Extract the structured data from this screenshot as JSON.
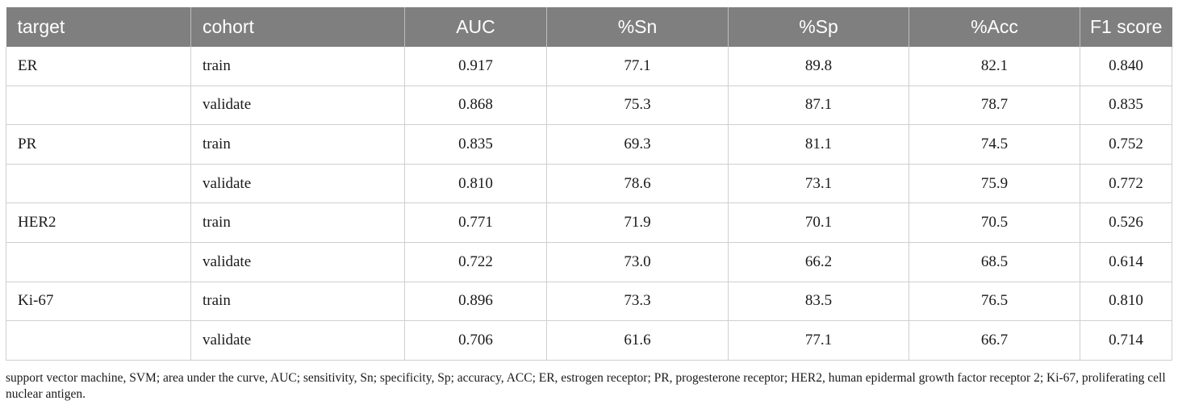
{
  "table": {
    "headers": [
      "target",
      "cohort",
      "AUC",
      "%Sn",
      "%Sp",
      "%Acc",
      "F1 score"
    ],
    "rows": [
      [
        "ER",
        "train",
        "0.917",
        "77.1",
        "89.8",
        "82.1",
        "0.840"
      ],
      [
        "",
        "validate",
        "0.868",
        "75.3",
        "87.1",
        "78.7",
        "0.835"
      ],
      [
        "PR",
        "train",
        "0.835",
        "69.3",
        "81.1",
        "74.5",
        "0.752"
      ],
      [
        "",
        "validate",
        "0.810",
        "78.6",
        "73.1",
        "75.9",
        "0.772"
      ],
      [
        "HER2",
        "train",
        "0.771",
        "71.9",
        "70.1",
        "70.5",
        "0.526"
      ],
      [
        "",
        "validate",
        "0.722",
        "73.0",
        "66.2",
        "68.5",
        "0.614"
      ],
      [
        "Ki-67",
        "train",
        "0.896",
        "73.3",
        "83.5",
        "76.5",
        "0.810"
      ],
      [
        "",
        "validate",
        "0.706",
        "61.6",
        "77.1",
        "66.7",
        "0.714"
      ]
    ]
  },
  "footnote": "support vector machine, SVM; area under the curve, AUC; sensitivity, Sn; specificity, Sp; accuracy, ACC; ER, estrogen receptor; PR, progesterone receptor; HER2, human epidermal growth factor receptor 2; Ki-67, proliferating cell nuclear antigen.",
  "colors": {
    "header_bg": "#7f7f7f",
    "header_text": "#ffffff",
    "grid": "#cfcfcf"
  }
}
